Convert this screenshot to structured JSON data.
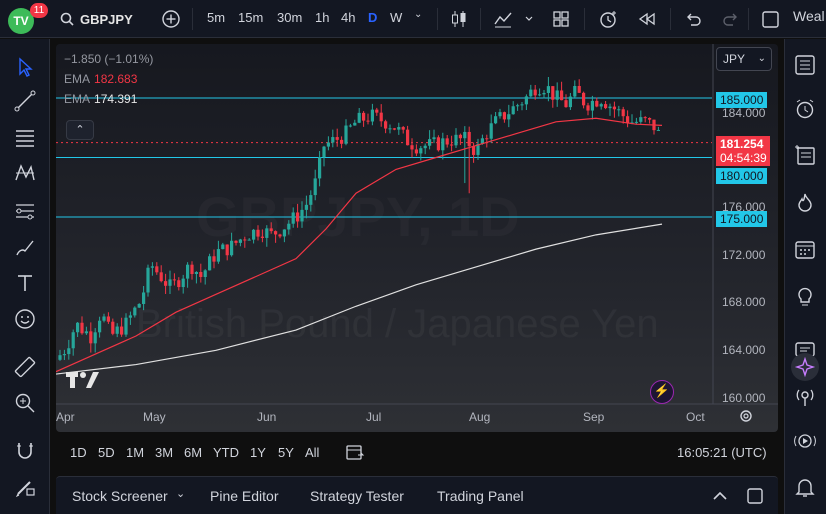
{
  "app": {
    "logo_text": "TV",
    "notifications": "11",
    "symbol": "GBPJPY",
    "timeframes": [
      "5m",
      "15m",
      "30m",
      "1h",
      "4h",
      "D",
      "W"
    ],
    "active_timeframe": "D",
    "right_text": "Weal"
  },
  "legend": {
    "change": "−1.850 (−1.01%)",
    "ema1_label": "EMA",
    "ema1_value": "182.683",
    "ema2_label": "EMA",
    "ema2_value": "174.391"
  },
  "watermark": {
    "symbol": "GBPJPY, 1D",
    "name": "British Pound / Japanese Yen"
  },
  "currency": "JPY",
  "price_axis": [
    "184.000",
    "176.000",
    "172.000",
    "168.000",
    "164.000",
    "160.000"
  ],
  "levels": [
    "185.000",
    "180.000",
    "175.000"
  ],
  "current_price": "181.254",
  "countdown": "04:54:39",
  "time_axis": [
    "Apr",
    "May",
    "Jun",
    "Jul",
    "Aug",
    "Sep",
    "Oct"
  ],
  "ranges": [
    "1D",
    "5D",
    "1M",
    "3M",
    "6M",
    "YTD",
    "1Y",
    "5Y",
    "All"
  ],
  "clock": "16:05:21 (UTC)",
  "bottom_tabs": [
    "Stock Screener",
    "Pine Editor",
    "Strategy Tester",
    "Trading Panel"
  ],
  "colors": {
    "up": "#26a69a",
    "down": "#f23645",
    "level": "#22c7e8",
    "ema_fast": "#f23645",
    "ema_slow": "#e0e0e0",
    "accent": "#2962ff"
  }
}
